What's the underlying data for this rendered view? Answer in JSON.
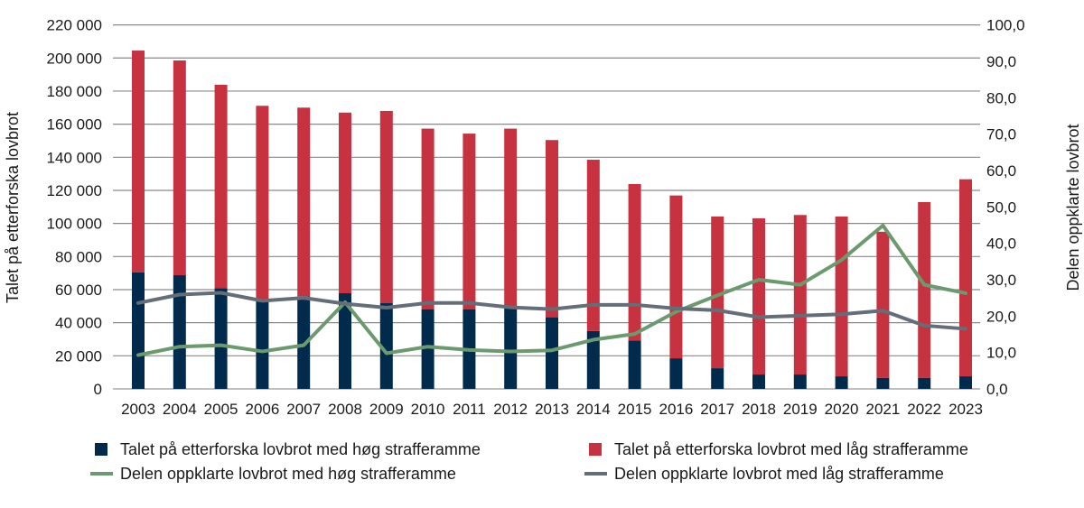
{
  "chart_data": {
    "type": "bar",
    "stacked": true,
    "categories": [
      "2003",
      "2004",
      "2005",
      "2006",
      "2007",
      "2008",
      "2009",
      "2010",
      "2011",
      "2012",
      "2013",
      "2014",
      "2015",
      "2016",
      "2017",
      "2018",
      "2019",
      "2020",
      "2021",
      "2022",
      "2023"
    ],
    "ylabel": "Talet på etterforska lovbrot",
    "y2label": "Delen oppklarte lovbrot",
    "ylim": [
      0,
      220000
    ],
    "y2lim": [
      0,
      100
    ],
    "yticks": [
      "0",
      "20 000",
      "40 000",
      "60 000",
      "80 000",
      "100 000",
      "120 000",
      "140 000",
      "160 000",
      "180 000",
      "200 000",
      "220 000"
    ],
    "y2ticks": [
      "0,0",
      "10,0",
      "20,0",
      "30,0",
      "40,0",
      "50,0",
      "60,0",
      "70,0",
      "80,0",
      "90,0",
      "100,0"
    ],
    "grid": true,
    "legend_placement": "bottom",
    "series": [
      {
        "name": "Talet på etterforska lovbrot med høg strafferamme",
        "kind": "bar",
        "axis": "left",
        "color": "#002B4C",
        "values": [
          70500,
          68700,
          60900,
          53000,
          56000,
          57800,
          51800,
          48200,
          48200,
          48700,
          43300,
          35000,
          29300,
          18500,
          12500,
          8700,
          8700,
          7600,
          6700,
          6700,
          7600
        ]
      },
      {
        "name": "Talet på etterforska lovbrot med låg strafferamme",
        "kind": "bar",
        "axis": "left",
        "color": "#C63240",
        "values": [
          134000,
          129800,
          122900,
          118100,
          114000,
          109200,
          116200,
          109100,
          106100,
          108600,
          107100,
          103500,
          94500,
          98400,
          91700,
          94400,
          96400,
          96600,
          88300,
          106200,
          119100
        ]
      },
      {
        "name": "Delen oppklarte lovbrot med høg strafferamme",
        "kind": "line",
        "axis": "right",
        "color": "#6A9A6E",
        "values": [
          9.3,
          11.6,
          12.0,
          10.3,
          12.0,
          23.8,
          9.8,
          11.6,
          10.7,
          10.3,
          10.6,
          13.5,
          15.1,
          21.2,
          25.7,
          30.0,
          28.6,
          35.4,
          44.9,
          28.6,
          26.3
        ]
      },
      {
        "name": "Delen oppklarte lovbrot med låg strafferamme",
        "kind": "line",
        "axis": "right",
        "color": "#646E78",
        "values": [
          23.6,
          25.9,
          26.4,
          24.2,
          25.0,
          23.4,
          22.3,
          23.6,
          23.6,
          22.4,
          21.9,
          23.1,
          23.1,
          22.1,
          21.6,
          19.7,
          20.1,
          20.5,
          21.5,
          17.4,
          16.5
        ]
      }
    ]
  }
}
